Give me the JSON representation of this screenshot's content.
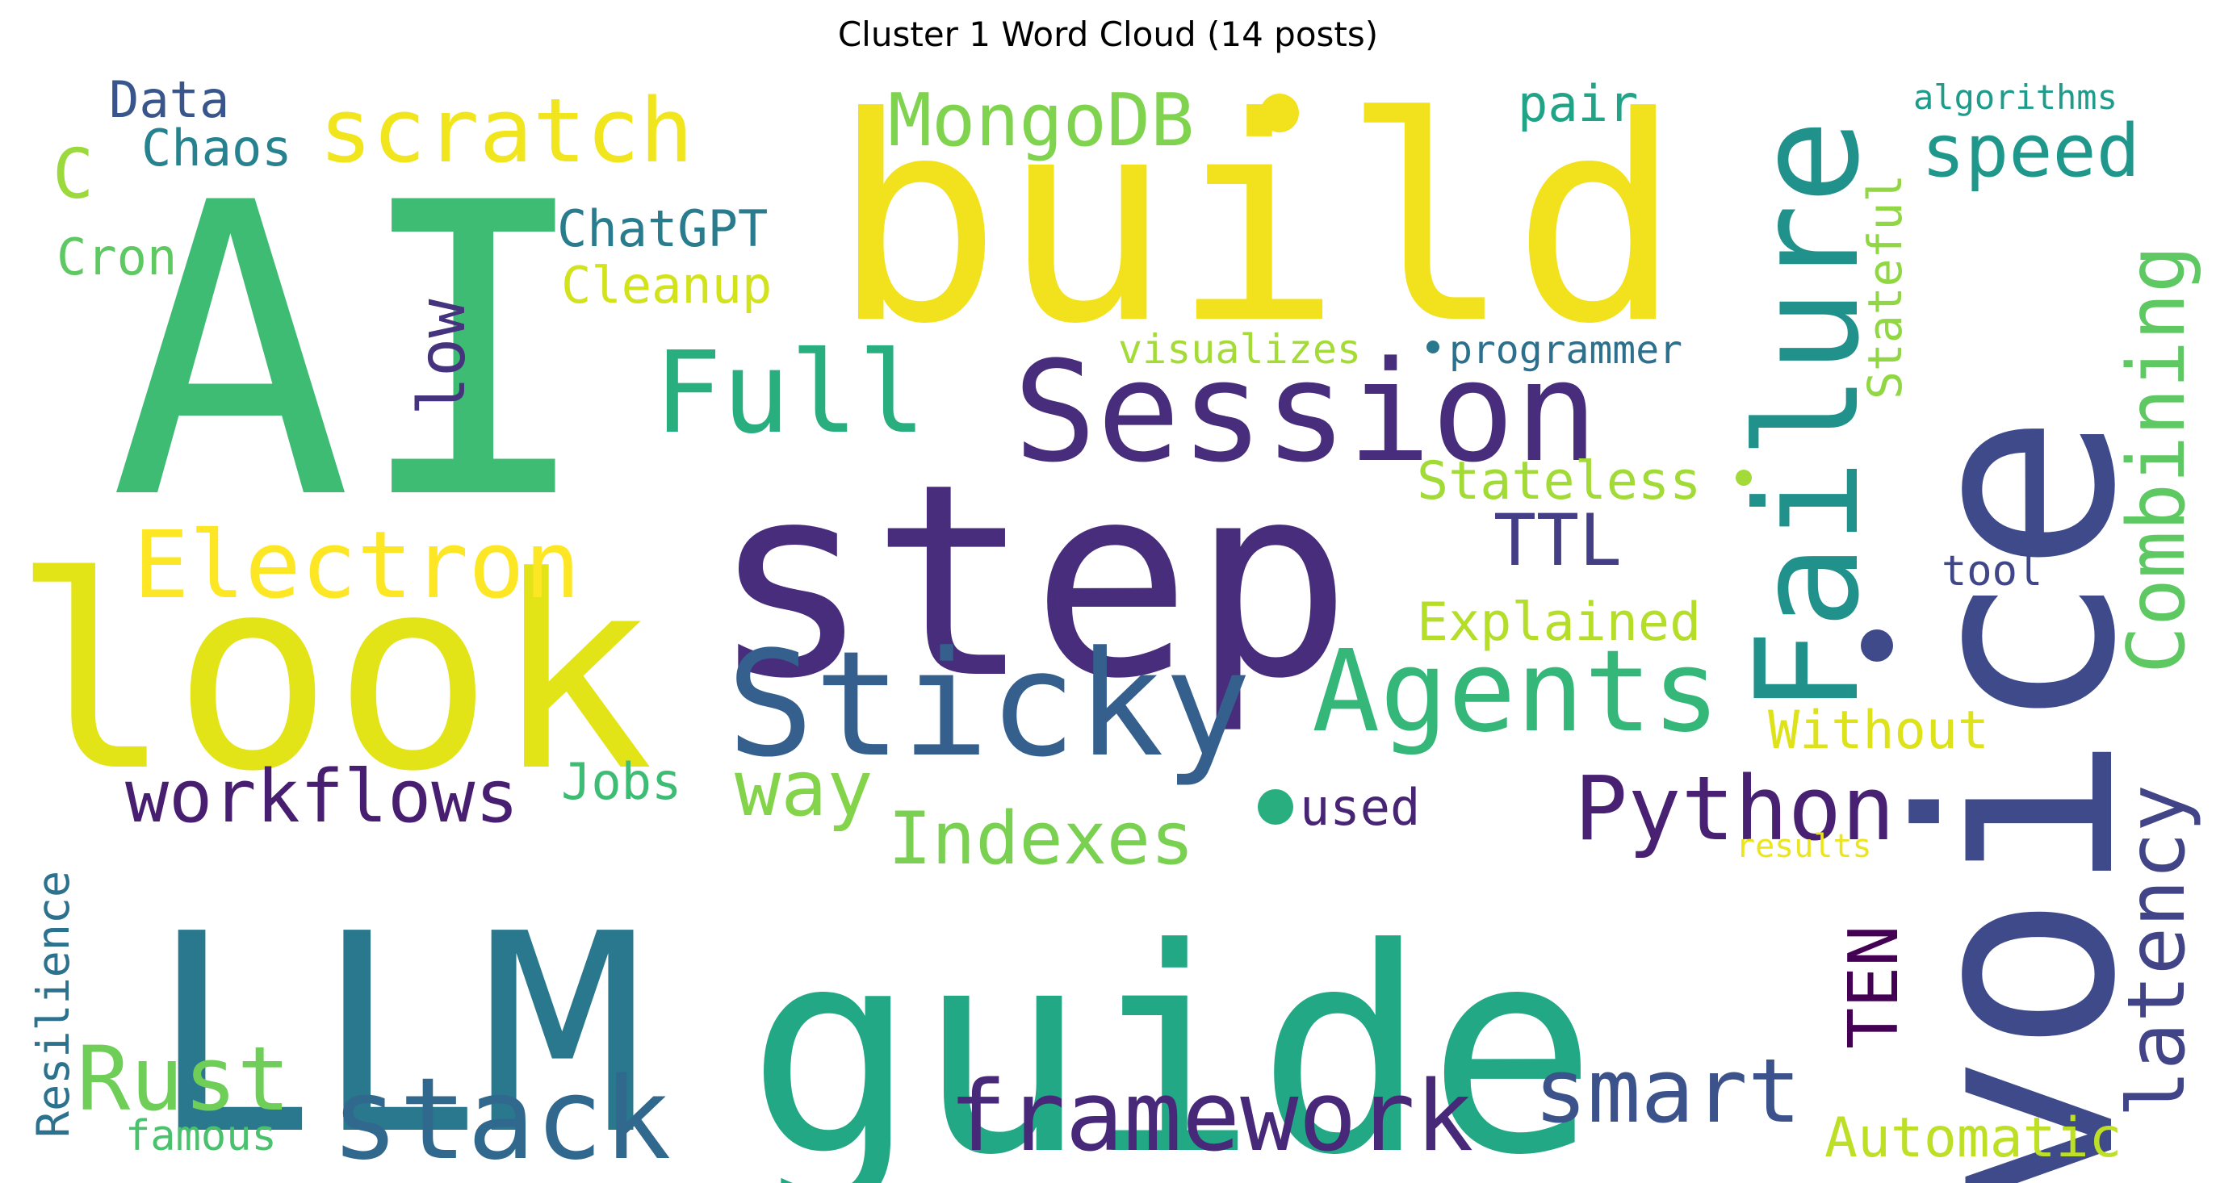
{
  "title": "Cluster 1 Word Cloud (14 posts)",
  "words": [
    {
      "text": "AI",
      "color": "#3fbc73"
    },
    {
      "text": "build",
      "color": "#f2e11d"
    },
    {
      "text": "step",
      "color": "#472d7b"
    },
    {
      "text": "look",
      "color": "#e2e418"
    },
    {
      "text": "guide",
      "color": "#22a884"
    },
    {
      "text": "LLM",
      "color": "#2a788e"
    },
    {
      "text": "voice",
      "color": "#3e4a89"
    },
    {
      "text": "Session",
      "color": "#472d7b"
    },
    {
      "text": "Sticky",
      "color": "#355f8d"
    },
    {
      "text": "Failure",
      "color": "#21918c"
    },
    {
      "text": "Agents",
      "color": "#35b779"
    },
    {
      "text": "Full",
      "color": "#29af7f"
    },
    {
      "text": "stack",
      "color": "#31688e"
    },
    {
      "text": "framework",
      "color": "#482878"
    },
    {
      "text": "Python",
      "color": "#482173"
    },
    {
      "text": "smart",
      "color": "#3b528b"
    },
    {
      "text": "Electron",
      "color": "#fde725"
    },
    {
      "text": "scratch",
      "color": "#f1e51d"
    },
    {
      "text": "workflows",
      "color": "#481f70"
    },
    {
      "text": "Combining",
      "color": "#5ec962"
    },
    {
      "text": "latency",
      "color": "#414487"
    },
    {
      "text": "Rust",
      "color": "#6ece58"
    },
    {
      "text": "Indexes",
      "color": "#7ad151"
    },
    {
      "text": "way",
      "color": "#84d44b"
    },
    {
      "text": "MongoDB",
      "color": "#7fd34e"
    },
    {
      "text": "speed",
      "color": "#1f988b"
    },
    {
      "text": "TTL",
      "color": "#433e85"
    },
    {
      "text": "TEN",
      "color": "#440154"
    },
    {
      "text": "low",
      "color": "#46337e"
    },
    {
      "text": "C",
      "color": "#9bd93c"
    },
    {
      "text": "Explained",
      "color": "#b5de2b"
    },
    {
      "text": "Stateless",
      "color": "#a2da37"
    },
    {
      "text": "Automatic",
      "color": "#bddf26"
    },
    {
      "text": "Without",
      "color": "#dde318"
    },
    {
      "text": "Resilience",
      "color": "#2c728e"
    },
    {
      "text": "Cleanup",
      "color": "#d2e21b"
    },
    {
      "text": "ChatGPT",
      "color": "#287c8e"
    },
    {
      "text": "Chaos",
      "color": "#26828e"
    },
    {
      "text": "Data",
      "color": "#39568c"
    },
    {
      "text": "Cron",
      "color": "#5ec962"
    },
    {
      "text": "Jobs",
      "color": "#3dbc74"
    },
    {
      "text": "used",
      "color": "#482475"
    },
    {
      "text": "pair",
      "color": "#20a386"
    },
    {
      "text": "Stateful",
      "color": "#90d743"
    },
    {
      "text": "famous",
      "color": "#4ac16d"
    },
    {
      "text": "visualizes",
      "color": "#a5db36"
    },
    {
      "text": "programmer",
      "color": "#2d708e"
    },
    {
      "text": "algorithms",
      "color": "#1e9b8a"
    },
    {
      "text": "tool",
      "color": "#3f4788"
    },
    {
      "text": "results",
      "color": "#ece51b"
    }
  ],
  "dots": [
    {
      "color": "#f2e11d"
    },
    {
      "color": "#3e4a89"
    },
    {
      "color": "#29af7f"
    },
    {
      "color": "#2a788e"
    },
    {
      "color": "#a2da37"
    }
  ]
}
